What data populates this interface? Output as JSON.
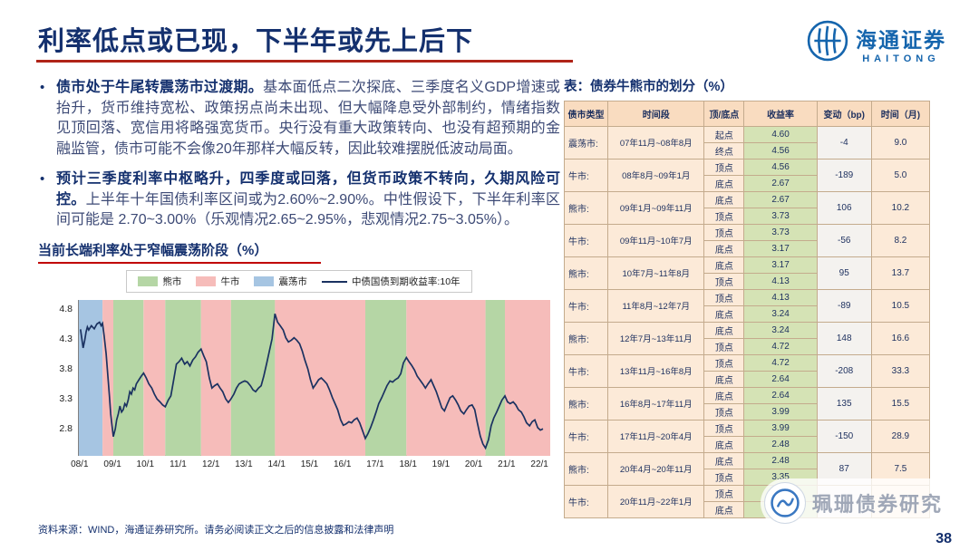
{
  "slide": {
    "title": "利率低点或已现，下半年或先上后下",
    "page_number": "38",
    "source_note": "资料来源：WIND，海通证券研究所。请务必阅读正文之后的信息披露和法律声明"
  },
  "logo": {
    "cn": "海通证券",
    "en": "HAITONG"
  },
  "watermark": {
    "text": "珮珊债券研究"
  },
  "bullets": [
    {
      "lead": "债市处于牛尾转震荡市过渡期。",
      "body": "基本面低点二次探底、三季度名义GDP增速或抬升，货币维持宽松、政策拐点尚未出现、但大幅降息受外部制约，情绪指数见顶回落、宽信用将略强宽货币。央行没有重大政策转向、也没有超预期的金融监管，债市可能不会像20年那样大幅反转，因此较难摆脱低波动局面。"
    },
    {
      "lead": "预计三季度利率中枢略升，四季度或回落，但货币政策不转向，久期风险可控。",
      "body": "上半年十年国债利率区间或为2.60%~2.90%。中性假设下，下半年利率区间可能是 2.70~3.00%（乐观情况2.65~2.95%，悲观情况2.75~3.05%）。"
    }
  ],
  "chart_data": {
    "type": "line",
    "title": "当前长端利率处于窄幅震荡阶段（%）",
    "series_name": "中债国债到期收益率:10年",
    "line_color": "#1b3261",
    "x_range": [
      2007.95,
      2022.3
    ],
    "y_range": [
      2.35,
      4.95
    ],
    "x_ticks": [
      "08/1",
      "09/1",
      "10/1",
      "11/1",
      "12/1",
      "13/1",
      "14/1",
      "15/1",
      "16/1",
      "17/1",
      "18/1",
      "19/1",
      "20/1",
      "21/1",
      "22/1"
    ],
    "y_ticks": [
      2.8,
      3.3,
      3.8,
      4.3,
      4.8
    ],
    "legend": [
      {
        "label": "熊市",
        "type": "box",
        "color": "#b5d6a5"
      },
      {
        "label": "牛市",
        "type": "box",
        "color": "#f6bcba"
      },
      {
        "label": "震荡市",
        "type": "box",
        "color": "#a6c5e2"
      },
      {
        "label": "中债国债到期收益率:10年",
        "type": "line",
        "color": "#1b3261"
      }
    ],
    "bands": [
      {
        "phase": "震荡市",
        "start": 2007.95,
        "end": 2008.67,
        "color": "#a6c5e2"
      },
      {
        "phase": "牛市",
        "start": 2008.67,
        "end": 2009.0,
        "color": "#f6bcba"
      },
      {
        "phase": "熊市",
        "start": 2009.0,
        "end": 2009.92,
        "color": "#b5d6a5"
      },
      {
        "phase": "牛市",
        "start": 2009.92,
        "end": 2010.58,
        "color": "#f6bcba"
      },
      {
        "phase": "熊市",
        "start": 2010.58,
        "end": 2011.67,
        "color": "#b5d6a5"
      },
      {
        "phase": "牛市",
        "start": 2011.67,
        "end": 2012.58,
        "color": "#f6bcba"
      },
      {
        "phase": "熊市",
        "start": 2012.58,
        "end": 2013.92,
        "color": "#b5d6a5"
      },
      {
        "phase": "牛市",
        "start": 2013.92,
        "end": 2016.67,
        "color": "#f6bcba"
      },
      {
        "phase": "熊市",
        "start": 2016.67,
        "end": 2017.92,
        "color": "#b5d6a5"
      },
      {
        "phase": "牛市",
        "start": 2017.92,
        "end": 2020.33,
        "color": "#f6bcba"
      },
      {
        "phase": "熊市",
        "start": 2020.33,
        "end": 2020.92,
        "color": "#b5d6a5"
      },
      {
        "phase": "牛市",
        "start": 2020.92,
        "end": 2022.3,
        "color": "#f6bcba"
      }
    ],
    "points": [
      [
        2008.0,
        4.46
      ],
      [
        2008.04,
        4.3
      ],
      [
        2008.08,
        4.15
      ],
      [
        2008.13,
        4.28
      ],
      [
        2008.17,
        4.42
      ],
      [
        2008.21,
        4.5
      ],
      [
        2008.25,
        4.45
      ],
      [
        2008.33,
        4.52
      ],
      [
        2008.42,
        4.47
      ],
      [
        2008.5,
        4.55
      ],
      [
        2008.58,
        4.58
      ],
      [
        2008.63,
        4.52
      ],
      [
        2008.67,
        4.56
      ],
      [
        2008.72,
        4.35
      ],
      [
        2008.78,
        4.05
      ],
      [
        2008.83,
        3.7
      ],
      [
        2008.88,
        3.35
      ],
      [
        2008.92,
        3.05
      ],
      [
        2008.96,
        2.85
      ],
      [
        2009.0,
        2.67
      ],
      [
        2009.06,
        2.8
      ],
      [
        2009.1,
        2.95
      ],
      [
        2009.15,
        3.05
      ],
      [
        2009.2,
        3.18
      ],
      [
        2009.25,
        3.08
      ],
      [
        2009.3,
        3.12
      ],
      [
        2009.35,
        3.22
      ],
      [
        2009.4,
        3.18
      ],
      [
        2009.45,
        3.28
      ],
      [
        2009.5,
        3.42
      ],
      [
        2009.55,
        3.38
      ],
      [
        2009.6,
        3.48
      ],
      [
        2009.65,
        3.45
      ],
      [
        2009.7,
        3.55
      ],
      [
        2009.78,
        3.62
      ],
      [
        2009.85,
        3.68
      ],
      [
        2009.92,
        3.73
      ],
      [
        2010.0,
        3.65
      ],
      [
        2010.08,
        3.55
      ],
      [
        2010.17,
        3.48
      ],
      [
        2010.25,
        3.38
      ],
      [
        2010.33,
        3.3
      ],
      [
        2010.42,
        3.25
      ],
      [
        2010.5,
        3.2
      ],
      [
        2010.58,
        3.17
      ],
      [
        2010.67,
        3.28
      ],
      [
        2010.75,
        3.35
      ],
      [
        2010.83,
        3.6
      ],
      [
        2010.92,
        3.88
      ],
      [
        2011.0,
        3.92
      ],
      [
        2011.08,
        3.98
      ],
      [
        2011.17,
        3.88
      ],
      [
        2011.25,
        3.92
      ],
      [
        2011.33,
        3.85
      ],
      [
        2011.42,
        3.95
      ],
      [
        2011.5,
        4.0
      ],
      [
        2011.58,
        4.08
      ],
      [
        2011.67,
        4.13
      ],
      [
        2011.75,
        4.02
      ],
      [
        2011.83,
        3.92
      ],
      [
        2011.92,
        3.65
      ],
      [
        2012.0,
        3.48
      ],
      [
        2012.08,
        3.52
      ],
      [
        2012.17,
        3.55
      ],
      [
        2012.25,
        3.48
      ],
      [
        2012.33,
        3.42
      ],
      [
        2012.42,
        3.3
      ],
      [
        2012.5,
        3.24
      ],
      [
        2012.58,
        3.3
      ],
      [
        2012.67,
        3.38
      ],
      [
        2012.75,
        3.48
      ],
      [
        2012.83,
        3.55
      ],
      [
        2012.92,
        3.58
      ],
      [
        2013.0,
        3.6
      ],
      [
        2013.08,
        3.58
      ],
      [
        2013.17,
        3.52
      ],
      [
        2013.25,
        3.45
      ],
      [
        2013.33,
        3.42
      ],
      [
        2013.42,
        3.48
      ],
      [
        2013.5,
        3.52
      ],
      [
        2013.58,
        3.68
      ],
      [
        2013.67,
        3.9
      ],
      [
        2013.75,
        4.1
      ],
      [
        2013.83,
        4.3
      ],
      [
        2013.92,
        4.72
      ],
      [
        2014.0,
        4.58
      ],
      [
        2014.08,
        4.52
      ],
      [
        2014.17,
        4.45
      ],
      [
        2014.25,
        4.32
      ],
      [
        2014.33,
        4.25
      ],
      [
        2014.42,
        4.28
      ],
      [
        2014.5,
        4.32
      ],
      [
        2014.58,
        4.28
      ],
      [
        2014.67,
        4.22
      ],
      [
        2014.75,
        4.1
      ],
      [
        2014.83,
        3.95
      ],
      [
        2014.92,
        3.8
      ],
      [
        2015.0,
        3.62
      ],
      [
        2015.08,
        3.48
      ],
      [
        2015.17,
        3.55
      ],
      [
        2015.25,
        3.62
      ],
      [
        2015.33,
        3.65
      ],
      [
        2015.42,
        3.6
      ],
      [
        2015.5,
        3.55
      ],
      [
        2015.58,
        3.45
      ],
      [
        2015.67,
        3.32
      ],
      [
        2015.75,
        3.22
      ],
      [
        2015.83,
        3.12
      ],
      [
        2015.92,
        2.95
      ],
      [
        2016.0,
        2.86
      ],
      [
        2016.08,
        2.88
      ],
      [
        2016.17,
        2.92
      ],
      [
        2016.25,
        2.9
      ],
      [
        2016.33,
        2.95
      ],
      [
        2016.42,
        2.98
      ],
      [
        2016.5,
        2.9
      ],
      [
        2016.58,
        2.78
      ],
      [
        2016.67,
        2.64
      ],
      [
        2016.75,
        2.72
      ],
      [
        2016.83,
        2.82
      ],
      [
        2016.92,
        2.95
      ],
      [
        2017.0,
        3.08
      ],
      [
        2017.08,
        3.22
      ],
      [
        2017.17,
        3.32
      ],
      [
        2017.25,
        3.42
      ],
      [
        2017.33,
        3.52
      ],
      [
        2017.42,
        3.6
      ],
      [
        2017.5,
        3.58
      ],
      [
        2017.58,
        3.62
      ],
      [
        2017.67,
        3.65
      ],
      [
        2017.75,
        3.72
      ],
      [
        2017.83,
        3.9
      ],
      [
        2017.92,
        3.99
      ],
      [
        2018.0,
        3.92
      ],
      [
        2018.08,
        3.86
      ],
      [
        2018.17,
        3.78
      ],
      [
        2018.25,
        3.68
      ],
      [
        2018.33,
        3.62
      ],
      [
        2018.42,
        3.55
      ],
      [
        2018.5,
        3.48
      ],
      [
        2018.58,
        3.55
      ],
      [
        2018.67,
        3.62
      ],
      [
        2018.75,
        3.52
      ],
      [
        2018.83,
        3.42
      ],
      [
        2018.92,
        3.28
      ],
      [
        2019.0,
        3.15
      ],
      [
        2019.08,
        3.1
      ],
      [
        2019.17,
        3.22
      ],
      [
        2019.25,
        3.32
      ],
      [
        2019.33,
        3.35
      ],
      [
        2019.42,
        3.28
      ],
      [
        2019.5,
        3.2
      ],
      [
        2019.58,
        3.1
      ],
      [
        2019.67,
        3.05
      ],
      [
        2019.75,
        3.12
      ],
      [
        2019.83,
        3.18
      ],
      [
        2019.92,
        3.2
      ],
      [
        2020.0,
        3.12
      ],
      [
        2020.08,
        2.9
      ],
      [
        2020.17,
        2.68
      ],
      [
        2020.25,
        2.55
      ],
      [
        2020.33,
        2.48
      ],
      [
        2020.42,
        2.62
      ],
      [
        2020.5,
        2.85
      ],
      [
        2020.58,
        2.98
      ],
      [
        2020.67,
        3.08
      ],
      [
        2020.75,
        3.18
      ],
      [
        2020.83,
        3.28
      ],
      [
        2020.92,
        3.35
      ],
      [
        2021.0,
        3.25
      ],
      [
        2021.08,
        3.22
      ],
      [
        2021.17,
        3.25
      ],
      [
        2021.25,
        3.2
      ],
      [
        2021.33,
        3.12
      ],
      [
        2021.42,
        3.08
      ],
      [
        2021.5,
        3.0
      ],
      [
        2021.58,
        2.9
      ],
      [
        2021.67,
        2.85
      ],
      [
        2021.75,
        2.92
      ],
      [
        2021.83,
        2.95
      ],
      [
        2021.92,
        2.82
      ],
      [
        2022.0,
        2.78
      ],
      [
        2022.08,
        2.8
      ]
    ]
  },
  "table": {
    "title": "表：债券牛熊市的划分（%）",
    "headers": [
      "债市类型",
      "时间段",
      "顶/底点",
      "收益率",
      "变动（bp)",
      "时间（月)"
    ],
    "rows": [
      {
        "type": "震荡市:",
        "period": "07年11月~08年8月",
        "p1": "起点",
        "v1": "4.60",
        "p2": "终点",
        "v2": "4.56",
        "change": "-4",
        "months": "9.0"
      },
      {
        "type": "牛市:",
        "period": "08年8月~09年1月",
        "p1": "顶点",
        "v1": "4.56",
        "p2": "底点",
        "v2": "2.67",
        "change": "-189",
        "months": "5.0"
      },
      {
        "type": "熊市:",
        "period": "09年1月~09年11月",
        "p1": "底点",
        "v1": "2.67",
        "p2": "顶点",
        "v2": "3.73",
        "change": "106",
        "months": "10.2"
      },
      {
        "type": "牛市:",
        "period": "09年11月~10年7月",
        "p1": "顶点",
        "v1": "3.73",
        "p2": "底点",
        "v2": "3.17",
        "change": "-56",
        "months": "8.2"
      },
      {
        "type": "熊市:",
        "period": "10年7月~11年8月",
        "p1": "底点",
        "v1": "3.17",
        "p2": "顶点",
        "v2": "4.13",
        "change": "95",
        "months": "13.7"
      },
      {
        "type": "牛市:",
        "period": "11年8月~12年7月",
        "p1": "顶点",
        "v1": "4.13",
        "p2": "底点",
        "v2": "3.24",
        "change": "-89",
        "months": "10.5"
      },
      {
        "type": "熊市:",
        "period": "12年7月~13年11月",
        "p1": "底点",
        "v1": "3.24",
        "p2": "顶点",
        "v2": "4.72",
        "change": "148",
        "months": "16.6"
      },
      {
        "type": "牛市:",
        "period": "13年11月~16年8月",
        "p1": "顶点",
        "v1": "4.72",
        "p2": "底点",
        "v2": "2.64",
        "change": "-208",
        "months": "33.3"
      },
      {
        "type": "熊市:",
        "period": "16年8月~17年11月",
        "p1": "底点",
        "v1": "2.64",
        "p2": "顶点",
        "v2": "3.99",
        "change": "135",
        "months": "15.5"
      },
      {
        "type": "牛市:",
        "period": "17年11月~20年4月",
        "p1": "顶点",
        "v1": "3.99",
        "p2": "底点",
        "v2": "2.48",
        "change": "-150",
        "months": "28.9"
      },
      {
        "type": "熊市:",
        "period": "20年4月~20年11月",
        "p1": "底点",
        "v1": "2.48",
        "p2": "顶点",
        "v2": "3.35",
        "change": "87",
        "months": "7.5"
      },
      {
        "type": "牛市:",
        "period": "20年11月~22年1月",
        "p1": "顶点",
        "v1": "",
        "p2": "底点",
        "v2": "",
        "change": "",
        "months": ""
      }
    ]
  }
}
